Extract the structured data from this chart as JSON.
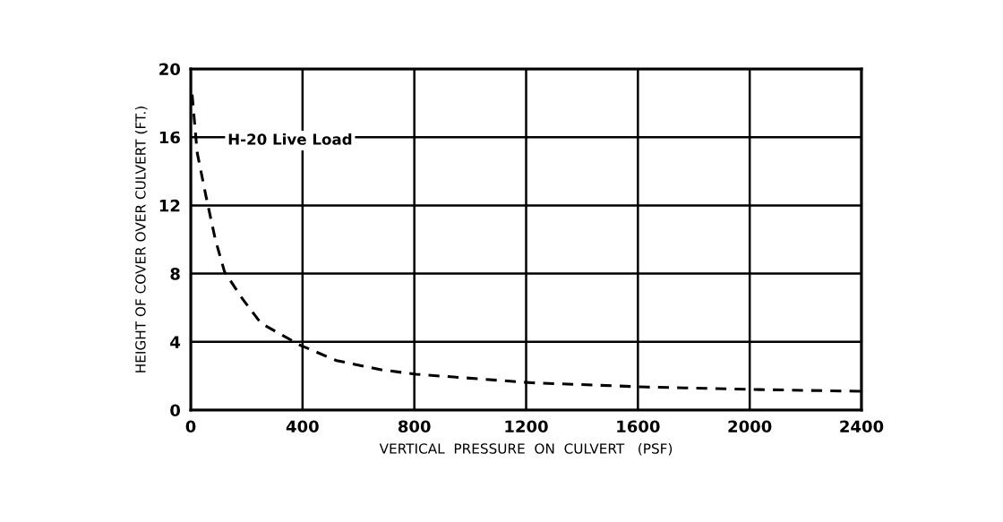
{
  "chart_data": {
    "type": "line",
    "xlabel": "VERTICAL  PRESSURE  ON  CULVERT   (PSF)",
    "ylabel": "HEIGHT OF COVER OVER CULVERT (FT.)",
    "annotations": [
      "H-20 Live Load"
    ],
    "x": [
      5,
      23,
      55,
      88,
      121,
      186,
      251,
      392,
      522,
      686,
      807,
      1221,
      1633,
      2037,
      2400
    ],
    "series": [
      {
        "color": "#000000",
        "values": [
          18.5,
          15.1,
          12.5,
          10,
          8.1,
          6.5,
          5.1,
          3.8,
          2.9,
          2.35,
          2.1,
          1.6,
          1.35,
          1.2,
          1.1
        ]
      }
    ],
    "line_style": "dashed",
    "marker": "none",
    "grid": true,
    "xlim": [
      0,
      2400
    ],
    "xticks": [
      0,
      400,
      800,
      1200,
      1600,
      2000,
      2400
    ],
    "ylim": [
      0,
      20
    ],
    "yticks": [
      0,
      4,
      8,
      12,
      16,
      20
    ]
  }
}
